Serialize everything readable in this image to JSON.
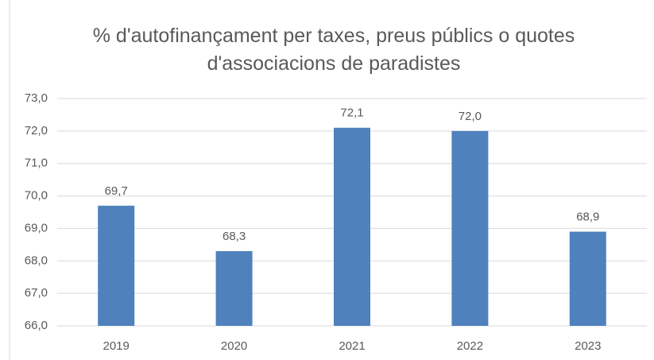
{
  "chart_data": {
    "type": "bar",
    "title": "% d'autofinançament per taxes, preus públics o quotes d'associacions de paradistes",
    "categories": [
      "2019",
      "2020",
      "2021",
      "2022",
      "2023"
    ],
    "values": [
      69.7,
      68.3,
      72.1,
      72.0,
      68.9
    ],
    "value_labels": [
      "69,7",
      "68,3",
      "72,1",
      "72,0",
      "68,9"
    ],
    "color": "#4f81bd",
    "ylim": [
      66,
      73
    ],
    "yticks": [
      {
        "value": 66,
        "label": "66,0"
      },
      {
        "value": 67,
        "label": "67,0"
      },
      {
        "value": 68,
        "label": "68,0"
      },
      {
        "value": 69,
        "label": "69,0"
      },
      {
        "value": 70,
        "label": "70,0"
      },
      {
        "value": 71,
        "label": "71,0"
      },
      {
        "value": 72,
        "label": "72,0"
      },
      {
        "value": 73,
        "label": "73,0"
      }
    ],
    "grid": true
  }
}
